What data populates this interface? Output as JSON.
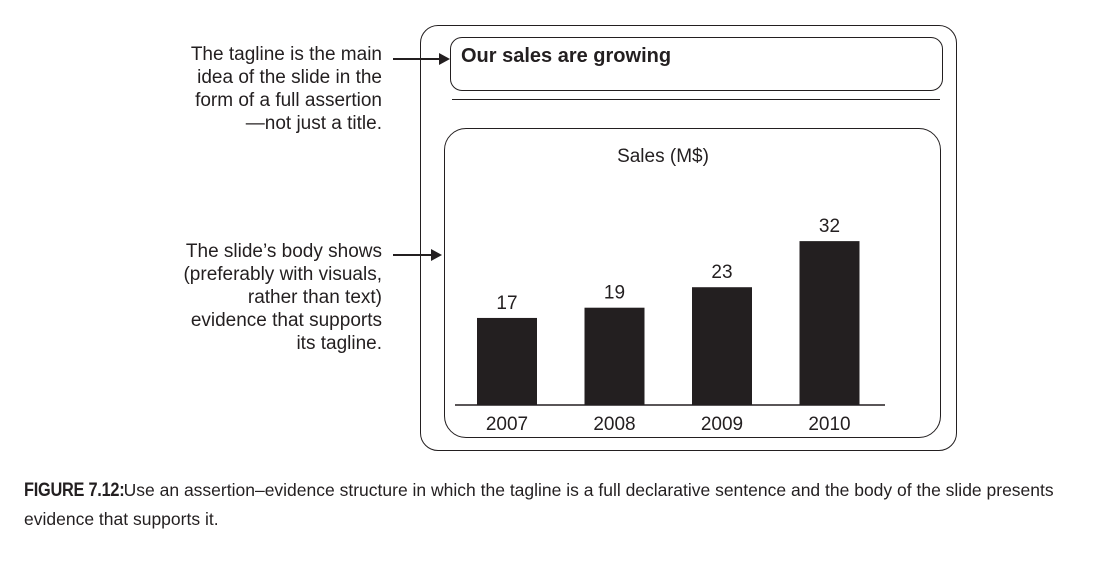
{
  "annotations": {
    "tagline_note": [
      "The tagline is the main",
      "idea of the slide in the",
      "form of a full assertion",
      "—not just a title."
    ],
    "body_note": [
      "The slide’s body shows",
      "(preferably with visuals,",
      "rather than text)",
      "evidence that supports",
      "its tagline."
    ]
  },
  "slide": {
    "tagline": "Our sales are growing"
  },
  "chart_data": {
    "type": "bar",
    "title": "Sales (M$)",
    "categories": [
      "2007",
      "2008",
      "2009",
      "2010"
    ],
    "values": [
      17,
      19,
      23,
      32
    ],
    "data_labels": [
      "17",
      "19",
      "23",
      "32"
    ],
    "xlabel": "",
    "ylabel": "",
    "ylim": [
      0,
      33
    ],
    "bar_color": "#231f20",
    "grid": false
  },
  "caption": {
    "label": "FIGURE 7.12:",
    "text": "Use an assertion–evidence structure in which the tagline is a full declarative sentence and the body of the slide presents evidence that supports it."
  }
}
